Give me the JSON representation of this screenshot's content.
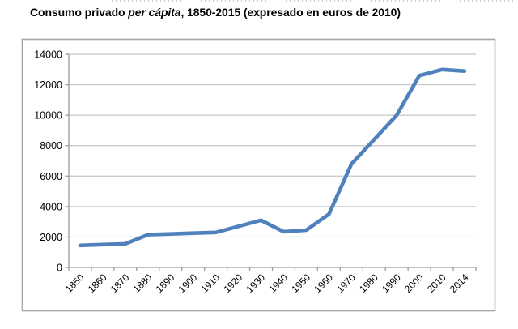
{
  "title": {
    "prefix": "Consumo privado ",
    "italic": "per cápita",
    "suffix": ", 1850-2015 (expresado en euros de 2010)"
  },
  "chart_data": {
    "type": "line",
    "title": "Consumo privado per cápita, 1850-2015 (expresado en euros de 2010)",
    "categories": [
      "1850",
      "1860",
      "1870",
      "1880",
      "1890",
      "1900",
      "1910",
      "1920",
      "1930",
      "1940",
      "1950",
      "1960",
      "1970",
      "1980",
      "1990",
      "2000",
      "2010",
      "2014"
    ],
    "values": [
      1450,
      1500,
      1550,
      2150,
      2200,
      2250,
      2300,
      2700,
      3100,
      2350,
      2450,
      3500,
      6800,
      8400,
      10000,
      12600,
      13000,
      12900
    ],
    "xlabel": "",
    "ylabel": "",
    "ylim": [
      0,
      14000
    ],
    "yticks": [
      0,
      2000,
      4000,
      6000,
      8000,
      10000,
      12000,
      14000
    ],
    "grid": "horizontal",
    "legend": "none",
    "colors": {
      "line": "#4F81BD",
      "grid": "#C6C6C6",
      "axis": "#9C9C9C",
      "border": "#A6A6A6",
      "text": "#000000",
      "background": "#FFFFFF"
    }
  }
}
